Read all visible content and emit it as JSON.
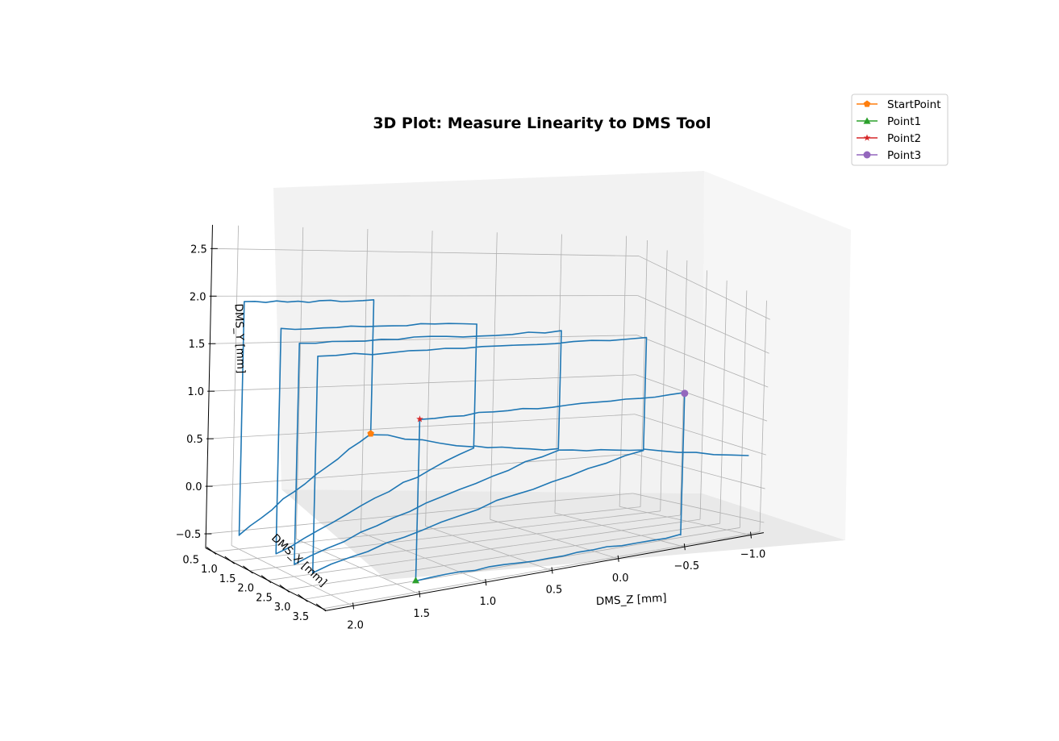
{
  "chart_data": {
    "type": "line",
    "projection": "3d",
    "title": "3D Plot: Measure Linearity to DMS Tool",
    "xlabel": "DMS_Z [mm]",
    "ylabel": "DMS_X [mm]",
    "zlabel": "DMS_Y [mm]",
    "z_ticks": [
      "2.0",
      "1.5",
      "1.0",
      "0.5",
      "0.0",
      "−0.5",
      "−1.0"
    ],
    "x_ticks": [
      "0.5",
      "1.0",
      "1.5",
      "2.0",
      "2.5",
      "3.0",
      "3.5"
    ],
    "y_ticks": [
      "−0.5",
      "0.0",
      "0.5",
      "1.0",
      "1.5",
      "2.0",
      "2.5"
    ],
    "grid": true,
    "legend": "top-right",
    "path_color": "#1f77b4",
    "markers": [
      {
        "name": "StartPoint",
        "color": "#ff7f0e",
        "marker": "pentagon",
        "dms_x": 0.5,
        "dms_y": 0.5,
        "dms_z": 1.0
      },
      {
        "name": "Point1",
        "color": "#2ca02c",
        "marker": "triangle",
        "dms_x": 3.5,
        "dms_y": -0.5,
        "dms_z": 1.5
      },
      {
        "name": "Point2",
        "color": "#d62728",
        "marker": "star",
        "dms_x": 3.5,
        "dms_y": 1.5,
        "dms_z": 1.5
      },
      {
        "name": "Point3",
        "color": "#9467bd",
        "marker": "circle",
        "dms_x": 3.5,
        "dms_y": 1.5,
        "dms_z": -0.5
      }
    ]
  }
}
